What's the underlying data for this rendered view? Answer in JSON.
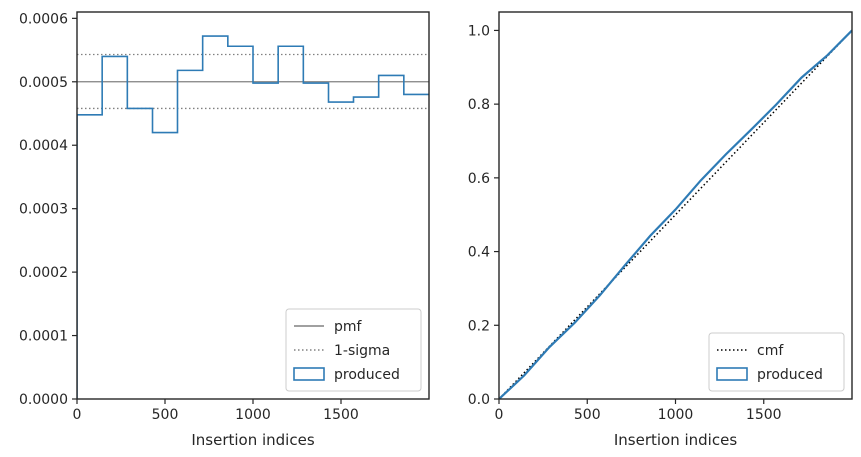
{
  "chart_data": [
    {
      "type": "step",
      "xlabel": "Insertion indices",
      "ylabel": "",
      "xlim": [
        0,
        2000
      ],
      "ylim": [
        0,
        0.00061
      ],
      "xticks": [
        0,
        500,
        1000,
        1500
      ],
      "xtick_labels": [
        "0",
        "500",
        "1000",
        "1500"
      ],
      "yticks": [
        0,
        0.0001,
        0.0002,
        0.0003,
        0.0004,
        0.0005,
        0.0006
      ],
      "ytick_labels": [
        "0.0000",
        "0.0001",
        "0.0002",
        "0.0003",
        "0.0004",
        "0.0005",
        "0.0006"
      ],
      "grid": false,
      "legend_position": "bottom-right",
      "reference_lines": [
        {
          "name": "pmf",
          "y": 0.0005,
          "style": "solid",
          "color": "#808080"
        },
        {
          "name": "1-sigma",
          "y": 0.000543,
          "style": "dotted",
          "color": "#808080"
        },
        {
          "name": "1-sigma",
          "y": 0.000458,
          "style": "dotted",
          "color": "#808080"
        }
      ],
      "series": [
        {
          "name": "produced",
          "color": "#2e7bb5",
          "bin_edges": [
            0,
            143,
            286,
            429,
            571,
            714,
            857,
            1000,
            1143,
            1286,
            1429,
            1571,
            1714,
            1857,
            2000
          ],
          "values": [
            0.000448,
            0.00054,
            0.000458,
            0.00042,
            0.000518,
            0.000572,
            0.000556,
            0.000498,
            0.000556,
            0.000498,
            0.000468,
            0.000476,
            0.00051,
            0.00048
          ]
        }
      ],
      "legend": [
        {
          "label": "pmf",
          "style": "solid-line",
          "color": "#808080"
        },
        {
          "label": "1-sigma",
          "style": "dotted-line",
          "color": "#808080"
        },
        {
          "label": "produced",
          "style": "box",
          "color": "#2e7bb5"
        }
      ]
    },
    {
      "type": "line",
      "xlabel": "Insertion indices",
      "ylabel": "",
      "xlim": [
        0,
        2000
      ],
      "ylim": [
        0,
        1.05
      ],
      "xticks": [
        0,
        500,
        1000,
        1500
      ],
      "xtick_labels": [
        "0",
        "500",
        "1000",
        "1500"
      ],
      "yticks": [
        0,
        0.2,
        0.4,
        0.6,
        0.8,
        1.0
      ],
      "ytick_labels": [
        "0.0",
        "0.2",
        "0.4",
        "0.6",
        "0.8",
        "1.0"
      ],
      "grid": false,
      "legend_position": "bottom-right",
      "series": [
        {
          "name": "cmf",
          "style": "dotted",
          "color": "#000000",
          "x": [
            0,
            2000
          ],
          "y": [
            0,
            1.0
          ]
        },
        {
          "name": "produced",
          "style": "solid",
          "color": "#2e7bb5",
          "x": [
            0,
            143,
            286,
            429,
            571,
            714,
            857,
            1000,
            1143,
            1286,
            1429,
            1571,
            1714,
            1857,
            2000
          ],
          "y": [
            0,
            0.064,
            0.141,
            0.207,
            0.281,
            0.363,
            0.443,
            0.514,
            0.593,
            0.664,
            0.731,
            0.799,
            0.872,
            0.931,
            1.0
          ]
        }
      ],
      "legend": [
        {
          "label": "cmf",
          "style": "dotted-line",
          "color": "#000000"
        },
        {
          "label": "produced",
          "style": "box",
          "color": "#2e7bb5"
        }
      ]
    }
  ]
}
